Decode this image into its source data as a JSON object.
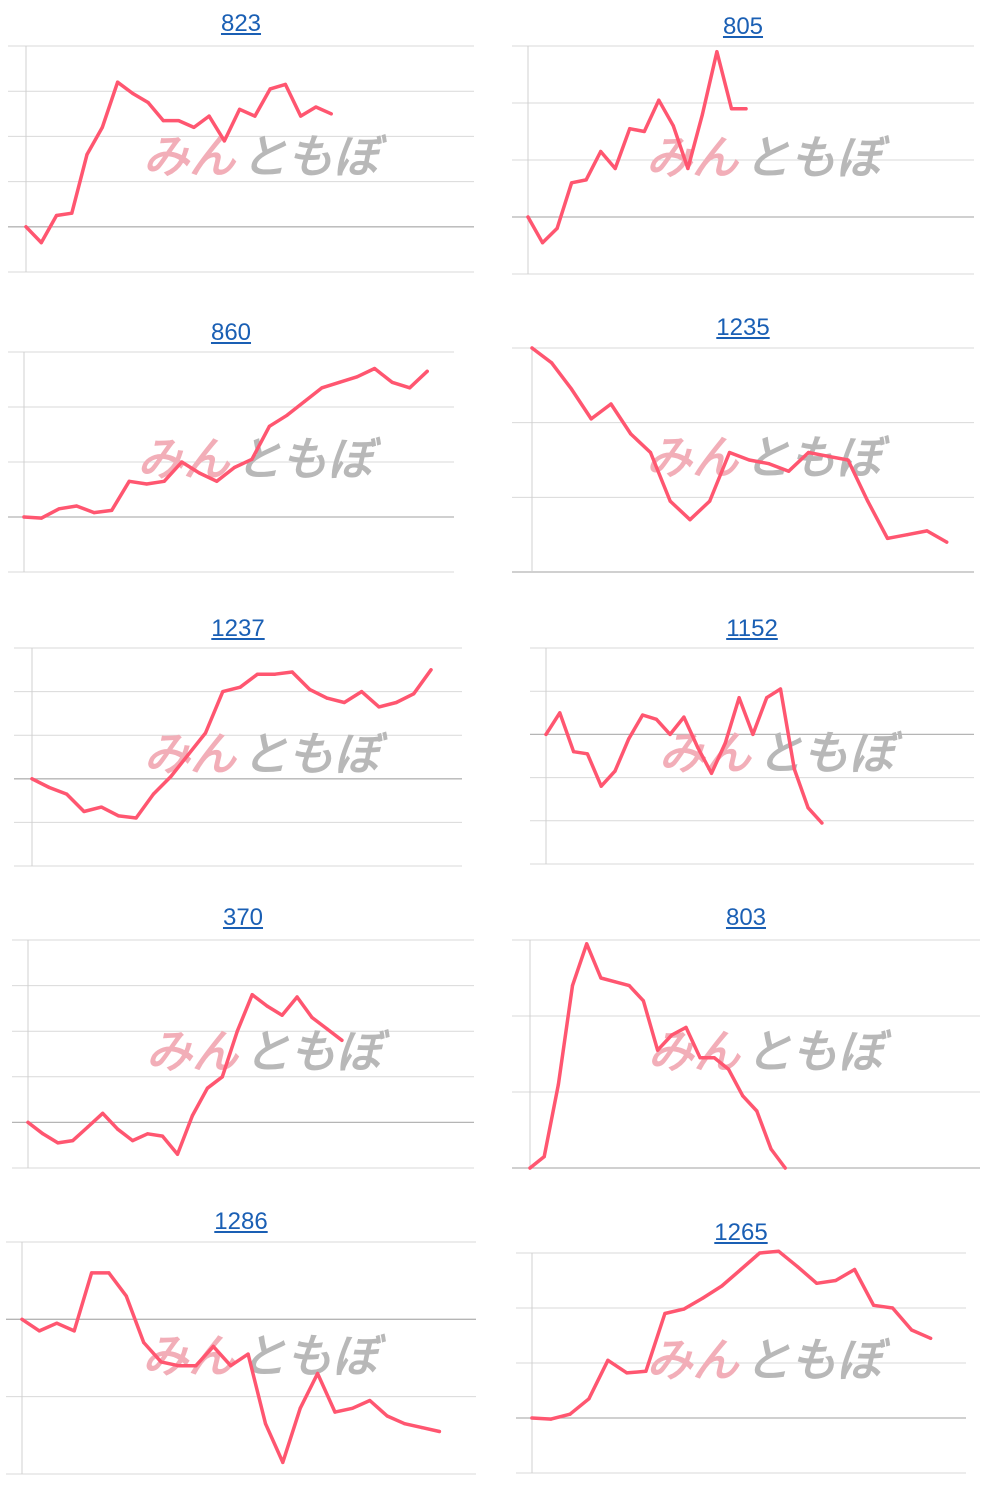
{
  "colors": {
    "line": "#ff5670",
    "title": "#1a5fb4",
    "watermark_pink": "#f2aeb8",
    "watermark_gray": "#b8b8b8"
  },
  "watermark": {
    "part1": "みん",
    "part2": "ともぼ"
  },
  "chart_data": [
    {
      "type": "line",
      "title": "823",
      "ylim": [
        0,
        5
      ],
      "base_gridline": 1,
      "values": [
        1.0,
        0.65,
        1.25,
        1.3,
        2.6,
        3.2,
        4.2,
        3.95,
        3.75,
        3.35,
        3.35,
        3.2,
        3.45,
        2.9,
        3.6,
        3.45,
        4.05,
        4.15,
        3.45,
        3.65,
        3.5
      ]
    },
    {
      "type": "line",
      "title": "805",
      "ylim": [
        0,
        4
      ],
      "base_gridline": 1,
      "values": [
        1.0,
        0.55,
        0.8,
        1.6,
        1.65,
        2.15,
        1.85,
        2.55,
        2.5,
        3.05,
        2.6,
        1.85,
        2.8,
        3.9,
        2.9,
        2.9
      ]
    },
    {
      "type": "line",
      "title": "860",
      "ylim": [
        0,
        4
      ],
      "base_gridline": 1,
      "values": [
        1.0,
        0.98,
        1.15,
        1.2,
        1.08,
        1.12,
        1.65,
        1.6,
        1.65,
        2.0,
        1.8,
        1.65,
        1.9,
        2.05,
        2.65,
        2.85,
        3.1,
        3.35,
        3.45,
        3.55,
        3.7,
        3.45,
        3.35,
        3.65
      ]
    },
    {
      "type": "line",
      "title": "1235",
      "ylim": [
        0,
        3
      ],
      "base_gridline": 0,
      "values": [
        3.0,
        2.8,
        2.45,
        2.05,
        2.25,
        1.85,
        1.6,
        0.95,
        0.7,
        0.95,
        1.6,
        1.5,
        1.45,
        1.35,
        1.6,
        1.55,
        1.5,
        0.95,
        0.45,
        0.5,
        0.55,
        0.4
      ]
    },
    {
      "type": "line",
      "title": "1237",
      "ylim": [
        0,
        5
      ],
      "base_gridline": 2,
      "values": [
        2.0,
        1.8,
        1.65,
        1.25,
        1.35,
        1.15,
        1.1,
        1.65,
        2.05,
        2.55,
        3.05,
        4.0,
        4.1,
        4.4,
        4.4,
        4.45,
        4.05,
        3.85,
        3.75,
        4.0,
        3.65,
        3.75,
        3.95,
        4.5
      ]
    },
    {
      "type": "line",
      "title": "1152",
      "ylim": [
        0,
        5
      ],
      "base_gridline": 3,
      "values": [
        3.0,
        3.5,
        2.6,
        2.55,
        1.8,
        2.15,
        2.9,
        3.45,
        3.35,
        3.0,
        3.4,
        2.7,
        2.1,
        2.8,
        3.85,
        3.0,
        3.85,
        4.05,
        2.2,
        1.3,
        0.95
      ]
    },
    {
      "type": "line",
      "title": "370",
      "ylim": [
        0,
        5
      ],
      "base_gridline": 1,
      "values": [
        1.0,
        0.75,
        0.55,
        0.6,
        0.9,
        1.2,
        0.85,
        0.6,
        0.75,
        0.7,
        0.3,
        1.15,
        1.75,
        2.0,
        3.0,
        3.8,
        3.55,
        3.35,
        3.75,
        3.3,
        3.05,
        2.8
      ]
    },
    {
      "type": "line",
      "title": "803",
      "ylim": [
        0,
        3
      ],
      "base_gridline": 0,
      "values": [
        0.0,
        0.15,
        1.1,
        2.4,
        2.95,
        2.5,
        2.45,
        2.4,
        2.2,
        1.55,
        1.75,
        1.85,
        1.45,
        1.45,
        1.3,
        0.95,
        0.75,
        0.25,
        0.0
      ]
    },
    {
      "type": "line",
      "title": "1286",
      "ylim": [
        0,
        3
      ],
      "base_gridline": 2,
      "values": [
        2.0,
        1.85,
        1.95,
        1.85,
        2.6,
        2.6,
        2.3,
        1.7,
        1.45,
        1.4,
        1.4,
        1.65,
        1.4,
        1.55,
        0.65,
        0.15,
        0.85,
        1.3,
        0.8,
        0.85,
        0.95,
        0.75,
        0.65,
        0.6,
        0.55
      ]
    },
    {
      "type": "line",
      "title": "1265",
      "ylim": [
        0,
        4
      ],
      "base_gridline": 1,
      "values": [
        1.0,
        0.98,
        1.07,
        1.35,
        2.05,
        1.82,
        1.85,
        2.9,
        2.98,
        3.18,
        3.4,
        3.7,
        4.0,
        4.03,
        3.75,
        3.45,
        3.5,
        3.7,
        3.05,
        3.0,
        2.6,
        2.45
      ]
    }
  ]
}
